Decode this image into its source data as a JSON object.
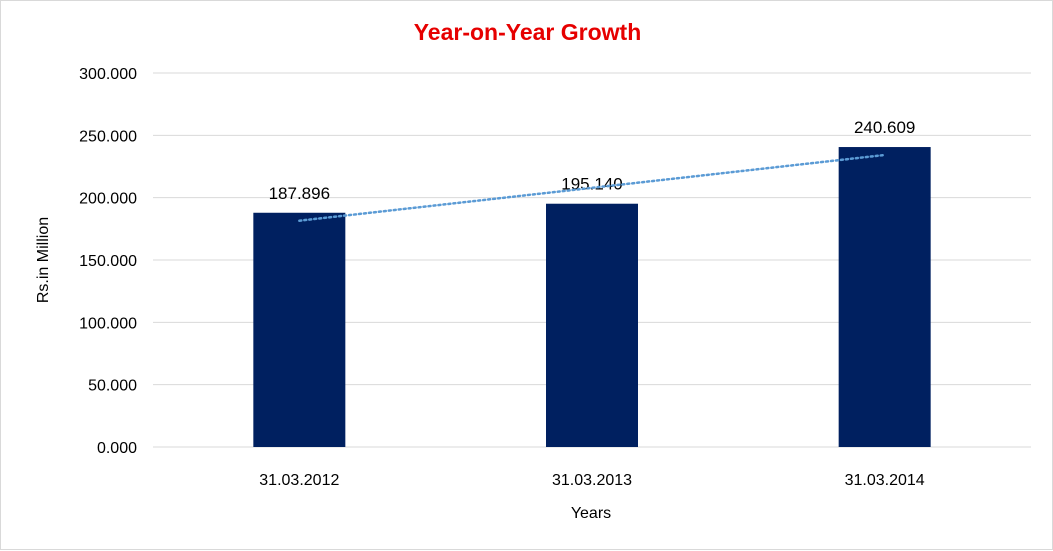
{
  "chart_data": {
    "type": "bar",
    "title": "Year-on-Year Growth",
    "xlabel": "Years",
    "ylabel": "Rs.in Million",
    "categories": [
      "31.03.2012",
      "31.03.2013",
      "31.03.2014"
    ],
    "values": [
      187.896,
      195.14,
      240.609
    ],
    "data_labels": [
      "187.896",
      "195.140",
      "240.609"
    ],
    "ylim": [
      0,
      300
    ],
    "yticks": [
      0,
      50,
      100,
      150,
      200,
      250,
      300
    ],
    "ytick_labels": [
      "0.000",
      "50.000",
      "100.000",
      "150.000",
      "200.000",
      "250.000",
      "300.000"
    ],
    "grid": true,
    "legend": "none",
    "trendline": "linear",
    "colors": {
      "bar": "#002060",
      "title": "#e60000",
      "trendline": "#5b9bd5",
      "grid": "#d9d9d9"
    }
  }
}
